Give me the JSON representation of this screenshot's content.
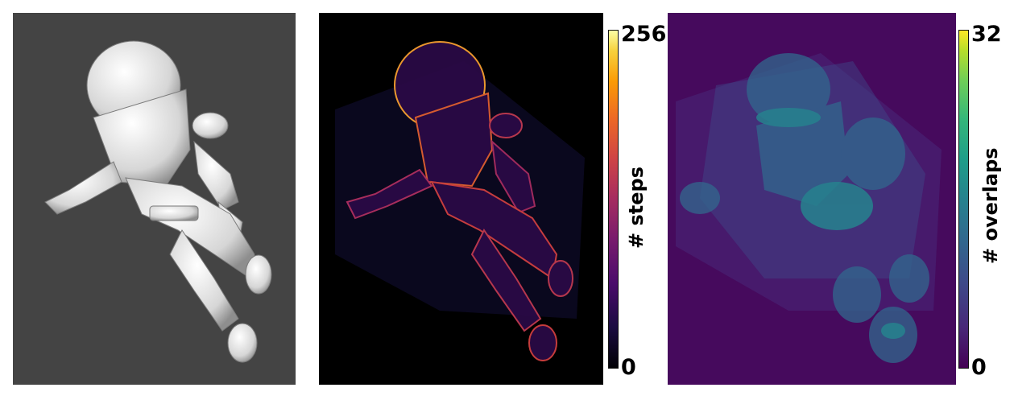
{
  "panels": [
    {
      "id": "shaded-render",
      "colors": {
        "background": "#444444",
        "body": "#e8e8e8",
        "shade": "#9c9c9c"
      }
    },
    {
      "id": "steps-heatmap",
      "colors": {
        "background": "#000000",
        "edge": "#fb9b06",
        "fill": "#4a0c6b"
      }
    },
    {
      "id": "overlaps-heatmap",
      "colors": {
        "background": "#460a5d",
        "region": "#3e4989",
        "hot": "#26828e"
      }
    }
  ],
  "colorbars": {
    "steps": {
      "label": "# steps",
      "max": "256",
      "min": "0",
      "colormap": "inferno"
    },
    "overlaps": {
      "label": "# overlaps",
      "max": "32",
      "min": "0",
      "colormap": "viridis"
    }
  }
}
